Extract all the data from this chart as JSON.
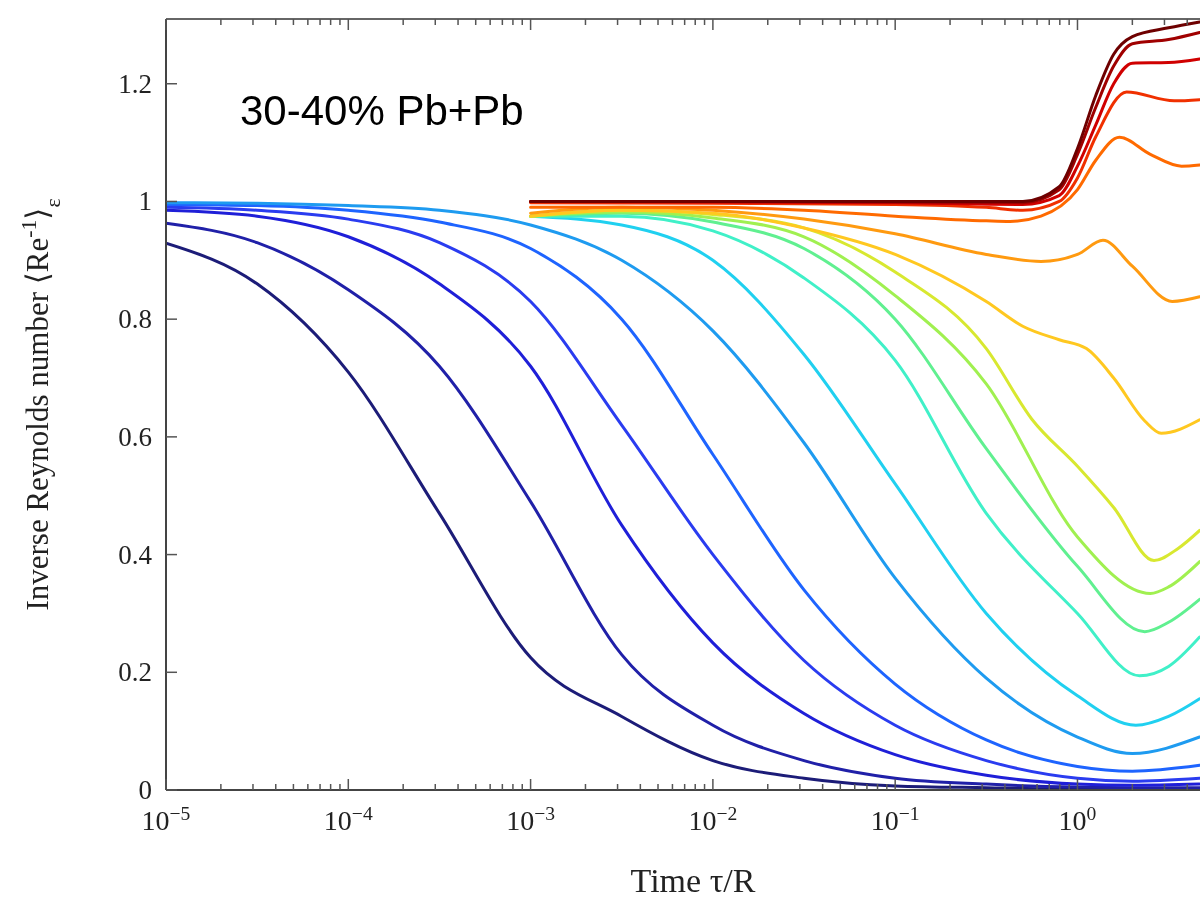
{
  "chart_data": {
    "type": "line",
    "xlabel": "Time τ/R",
    "ylabel": "Inverse Reynolds number ⟨Re$^{-1}$⟩$_{ε}$",
    "annotations": [
      "30-40% Pb+Pb"
    ],
    "log": "x",
    "xlim": [
      1e-05,
      4.7
    ],
    "ylim": [
      0,
      1.31
    ],
    "xticks": [
      {
        "value": 1e-05,
        "label": "10$^{−5}$"
      },
      {
        "value": 2e-05,
        "label": null
      },
      {
        "value": 3e-05,
        "label": null
      },
      {
        "value": 4e-05,
        "label": null
      },
      {
        "value": 5e-05,
        "label": null
      },
      {
        "value": 6e-05,
        "label": null
      },
      {
        "value": 7e-05,
        "label": null
      },
      {
        "value": 8e-05,
        "label": null
      },
      {
        "value": 9e-05,
        "label": null
      },
      {
        "value": 0.0001,
        "label": "10$^{−4}$"
      },
      {
        "value": 0.0002,
        "label": null
      },
      {
        "value": 0.0003,
        "label": null
      },
      {
        "value": 0.0004,
        "label": null
      },
      {
        "value": 0.0005,
        "label": null
      },
      {
        "value": 0.0006,
        "label": null
      },
      {
        "value": 0.0007,
        "label": null
      },
      {
        "value": 0.0008,
        "label": null
      },
      {
        "value": 0.0009,
        "label": null
      },
      {
        "value": 0.001,
        "label": "10$^{−3}$"
      },
      {
        "value": 0.002,
        "label": null
      },
      {
        "value": 0.003,
        "label": null
      },
      {
        "value": 0.004,
        "label": null
      },
      {
        "value": 0.005,
        "label": null
      },
      {
        "value": 0.006,
        "label": null
      },
      {
        "value": 0.007,
        "label": null
      },
      {
        "value": 0.008,
        "label": null
      },
      {
        "value": 0.009,
        "label": null
      },
      {
        "value": 0.01,
        "label": "10$^{−2}$"
      },
      {
        "value": 0.02,
        "label": null
      },
      {
        "value": 0.03,
        "label": null
      },
      {
        "value": 0.04,
        "label": null
      },
      {
        "value": 0.05,
        "label": null
      },
      {
        "value": 0.06,
        "label": null
      },
      {
        "value": 0.07,
        "label": null
      },
      {
        "value": 0.08,
        "label": null
      },
      {
        "value": 0.09,
        "label": null
      },
      {
        "value": 0.1,
        "label": "10$^{−1}$"
      },
      {
        "value": 0.2,
        "label": null
      },
      {
        "value": 0.3,
        "label": null
      },
      {
        "value": 0.4,
        "label": null
      },
      {
        "value": 0.5,
        "label": null
      },
      {
        "value": 0.6,
        "label": null
      },
      {
        "value": 0.7,
        "label": null
      },
      {
        "value": 0.8,
        "label": null
      },
      {
        "value": 0.9,
        "label": null
      },
      {
        "value": 1,
        "label": "10$^{0}$"
      },
      {
        "value": 2,
        "label": null
      },
      {
        "value": 3,
        "label": null
      },
      {
        "value": 4,
        "label": null
      }
    ],
    "yticks": [
      0,
      0.2,
      0.4,
      0.6,
      0.8,
      1,
      1.2
    ],
    "series": [
      {
        "color": "#1c1c78",
        "x": [
          1e-05,
          3.16e-05,
          0.0001,
          0.000316,
          0.001,
          0.00316,
          0.01,
          0.0316,
          0.1,
          0.316,
          1,
          2,
          4.68
        ],
        "values": [
          0.929,
          0.86,
          0.71,
          0.47,
          0.225,
          0.125,
          0.05,
          0.02,
          0.007,
          0.004,
          0.002,
          0.002,
          0.002
        ]
      },
      {
        "color": "#2020a8",
        "x": [
          1e-05,
          3.16e-05,
          0.0001,
          0.000316,
          0.001,
          0.00316,
          0.01,
          0.0316,
          0.1,
          0.316,
          1,
          2,
          4.68
        ],
        "values": [
          0.963,
          0.93,
          0.85,
          0.72,
          0.49,
          0.23,
          0.11,
          0.05,
          0.02,
          0.01,
          0.005,
          0.004,
          0.004
        ]
      },
      {
        "color": "#1f1fd8",
        "x": [
          1e-05,
          3.16e-05,
          0.0001,
          0.000316,
          0.001,
          0.00316,
          0.01,
          0.0316,
          0.1,
          0.316,
          1,
          2,
          4.68
        ],
        "values": [
          0.985,
          0.975,
          0.94,
          0.86,
          0.72,
          0.45,
          0.25,
          0.13,
          0.06,
          0.025,
          0.01,
          0.008,
          0.01
        ]
      },
      {
        "color": "#2a3cf0",
        "x": [
          1e-05,
          3.16e-05,
          0.0001,
          0.000316,
          0.001,
          0.00316,
          0.01,
          0.0316,
          0.1,
          0.316,
          1,
          2,
          4.68
        ],
        "values": [
          0.99,
          0.985,
          0.97,
          0.93,
          0.83,
          0.62,
          0.4,
          0.22,
          0.11,
          0.05,
          0.02,
          0.015,
          0.02
        ]
      },
      {
        "color": "#1e64ff",
        "x": [
          1e-05,
          3.16e-05,
          0.0001,
          0.000316,
          0.001,
          0.00316,
          0.01,
          0.0316,
          0.1,
          0.316,
          1,
          2,
          4.68
        ],
        "values": [
          0.995,
          0.993,
          0.985,
          0.965,
          0.92,
          0.8,
          0.57,
          0.34,
          0.18,
          0.085,
          0.04,
          0.032,
          0.042
        ]
      },
      {
        "color": "#1e9bf0",
        "x": [
          1e-05,
          3.16e-05,
          0.0001,
          0.000316,
          0.001,
          0.00316,
          0.01,
          0.0316,
          0.1,
          0.316,
          1,
          2,
          4.68
        ],
        "values": [
          0.998,
          0.997,
          0.993,
          0.985,
          0.96,
          0.9,
          0.78,
          0.59,
          0.36,
          0.19,
          0.09,
          0.062,
          0.09
        ]
      },
      {
        "color": "#20d0f0",
        "x": [
          0.001,
          0.00316,
          0.01,
          0.0316,
          0.1,
          0.316,
          1,
          2.09,
          3.16,
          4.68
        ],
        "values": [
          0.975,
          0.96,
          0.9,
          0.74,
          0.52,
          0.3,
          0.16,
          0.11,
          0.125,
          0.155
        ]
      },
      {
        "color": "#40f0c8",
        "x": [
          0.001,
          0.00316,
          0.01,
          0.0316,
          0.1,
          0.316,
          1,
          2.19,
          3.16,
          4.68
        ],
        "values": [
          0.975,
          0.975,
          0.95,
          0.87,
          0.73,
          0.47,
          0.3,
          0.194,
          0.21,
          0.26
        ]
      },
      {
        "color": "#60f090",
        "x": [
          0.001,
          0.00316,
          0.01,
          0.0316,
          0.1,
          0.316,
          1,
          2.34,
          3.16,
          4.68
        ],
        "values": [
          0.975,
          0.98,
          0.965,
          0.92,
          0.8,
          0.58,
          0.38,
          0.269,
          0.285,
          0.324
        ]
      },
      {
        "color": "#a0f050",
        "x": [
          0.001,
          0.00316,
          0.01,
          0.0316,
          0.1,
          0.316,
          1,
          2.51,
          3.16,
          4.68
        ],
        "values": [
          0.975,
          0.982,
          0.972,
          0.94,
          0.84,
          0.69,
          0.43,
          0.334,
          0.345,
          0.388
        ]
      },
      {
        "color": "#d8e830",
        "x": [
          0.001,
          0.00316,
          0.01,
          0.0316,
          0.1,
          0.316,
          0.562,
          1,
          1.58,
          2.63,
          3.55,
          4.68
        ],
        "values": [
          0.975,
          0.985,
          0.978,
          0.955,
          0.88,
          0.75,
          0.63,
          0.55,
          0.48,
          0.39,
          0.41,
          0.441
        ]
      },
      {
        "color": "#ffc820",
        "x": [
          0.001,
          0.00316,
          0.01,
          0.0316,
          0.1,
          0.316,
          0.501,
          0.794,
          1.12,
          1.58,
          2.34,
          2.88,
          4.68
        ],
        "values": [
          0.975,
          0.985,
          0.98,
          0.955,
          0.91,
          0.83,
          0.788,
          0.765,
          0.75,
          0.7,
          0.627,
          0.606,
          0.629
        ]
      },
      {
        "color": "#ff9a10",
        "x": [
          0.001,
          0.00316,
          0.01,
          0.0316,
          0.1,
          0.316,
          0.631,
          1,
          1.38,
          2,
          3.31,
          4.68
        ],
        "values": [
          0.98,
          0.99,
          0.985,
          0.97,
          0.945,
          0.91,
          0.898,
          0.91,
          0.934,
          0.89,
          0.83,
          0.838
        ]
      },
      {
        "color": "#ff6a00",
        "x": [
          0.001,
          0.01,
          0.0316,
          0.1,
          0.316,
          0.427,
          0.631,
          1,
          1.26,
          1.7,
          2.51,
          3.72,
          4.68
        ],
        "values": [
          0.99,
          0.99,
          0.985,
          0.975,
          0.967,
          0.966,
          0.975,
          1.02,
          1.07,
          1.109,
          1.08,
          1.06,
          1.062
        ]
      },
      {
        "color": "#f03000",
        "x": [
          0.001,
          0.01,
          0.1,
          0.316,
          0.501,
          0.794,
          1,
          1.26,
          1.86,
          3.39,
          4.68
        ],
        "values": [
          0.998,
          0.997,
          0.995,
          0.99,
          0.985,
          1.0,
          1.04,
          1.11,
          1.186,
          1.171,
          1.173
        ]
      },
      {
        "color": "#d00000",
        "x": [
          0.001,
          0.01,
          0.1,
          0.501,
          0.794,
          1,
          1.26,
          1.58,
          2,
          3.16,
          4.68
        ],
        "values": [
          1.0,
          0.999,
          0.998,
          0.995,
          1.01,
          1.06,
          1.13,
          1.2,
          1.235,
          1.236,
          1.242
        ]
      },
      {
        "color": "#a00000",
        "x": [
          0.001,
          0.01,
          0.1,
          0.501,
          0.794,
          1,
          1.26,
          1.58,
          2,
          3.16,
          4.68
        ],
        "values": [
          1.0,
          1.0,
          0.999,
          0.998,
          1.02,
          1.08,
          1.16,
          1.23,
          1.268,
          1.275,
          1.287
        ]
      },
      {
        "color": "#6e0000",
        "x": [
          0.001,
          0.01,
          0.1,
          0.501,
          0.794,
          1,
          1.26,
          1.58,
          2,
          3.16,
          4.68
        ],
        "values": [
          1.0,
          1.0,
          1.0,
          1.0,
          1.025,
          1.09,
          1.18,
          1.25,
          1.28,
          1.295,
          1.305
        ]
      }
    ]
  }
}
